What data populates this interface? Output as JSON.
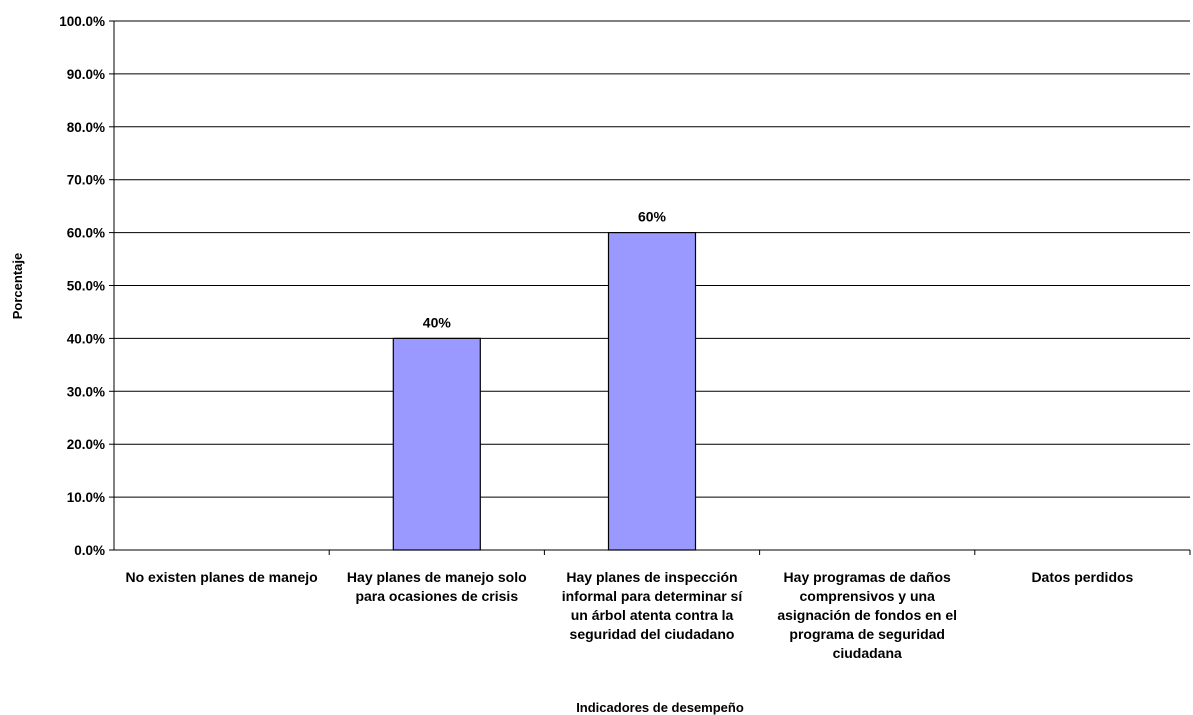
{
  "chart_data": {
    "type": "bar",
    "categories": [
      "No existen planes de manejo",
      "Hay planes de manejo solo para ocasiones de crisis",
      "Hay planes de inspección informal para determinar sí un árbol atenta contra la seguridad del ciudadano",
      "Hay programas de daños comprensivos y una asignación de fondos en el programa de    seguridad ciudadana",
      "Datos perdidos"
    ],
    "values": [
      null,
      40,
      60,
      null,
      null
    ],
    "data_labels": [
      "",
      "40%",
      "60%",
      "",
      ""
    ],
    "xlabel": "Indicadores de desempeño",
    "ylabel": "Porcentaje",
    "ylim": [
      0,
      100
    ],
    "yticks": [
      "0.0%",
      "10.0%",
      "20.0%",
      "30.0%",
      "40.0%",
      "50.0%",
      "60.0%",
      "70.0%",
      "80.0%",
      "90.0%",
      "100.0%"
    ],
    "grid": true,
    "legend": "none",
    "colors": {
      "bar": "#9999ff",
      "bar_border": "#000000",
      "grid": "#000000",
      "axis": "#000000"
    }
  }
}
